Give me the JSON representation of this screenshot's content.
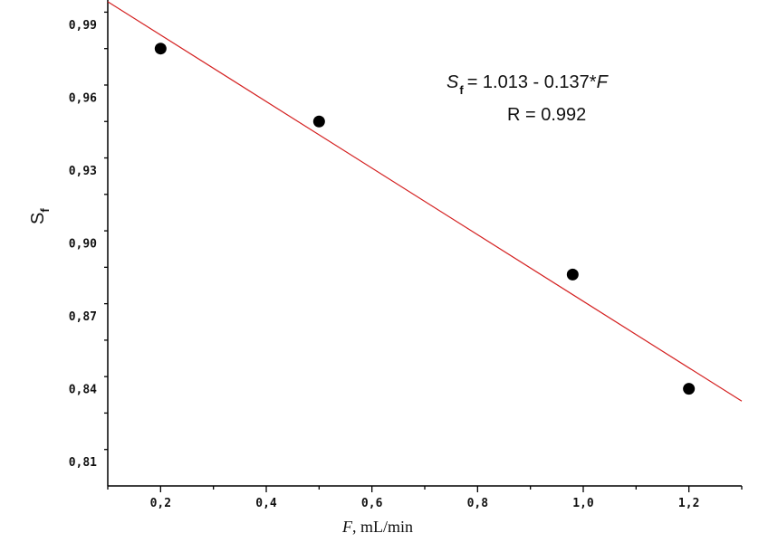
{
  "chart_data": {
    "type": "scatter",
    "xlabel_italic": "F",
    "xlabel_rest": ", mL/min",
    "ylabel_main": "S",
    "ylabel_sub": "f",
    "xlim": [
      0.1,
      1.3
    ],
    "ylim": [
      0.8,
      1.0
    ],
    "x_ticks": [
      0.2,
      0.4,
      0.6,
      0.8,
      1.0,
      1.2
    ],
    "x_tick_labels": [
      "0,2",
      "0,4",
      "0,6",
      "0,8",
      "1,0",
      "1,2"
    ],
    "y_ticks": [
      0.81,
      0.84,
      0.87,
      0.9,
      0.93,
      0.96,
      0.99
    ],
    "y_tick_labels": [
      "0,81",
      "0,84",
      "0,87",
      "0,90",
      "0,93",
      "0,96",
      "0,99"
    ],
    "points": [
      {
        "x": 0.2,
        "y": 0.98
      },
      {
        "x": 0.5,
        "y": 0.95
      },
      {
        "x": 0.98,
        "y": 0.887
      },
      {
        "x": 1.2,
        "y": 0.84
      }
    ],
    "fit_line": {
      "intercept": 1.013,
      "slope": -0.137,
      "color": "#d42020"
    },
    "point_color": "#000000",
    "equation": {
      "lhs_main": "S",
      "lhs_sub": "f",
      "rhs": "= 1.013 - 0.137*",
      "rhs_var": "F",
      "r_text": "R = 0.992"
    }
  }
}
